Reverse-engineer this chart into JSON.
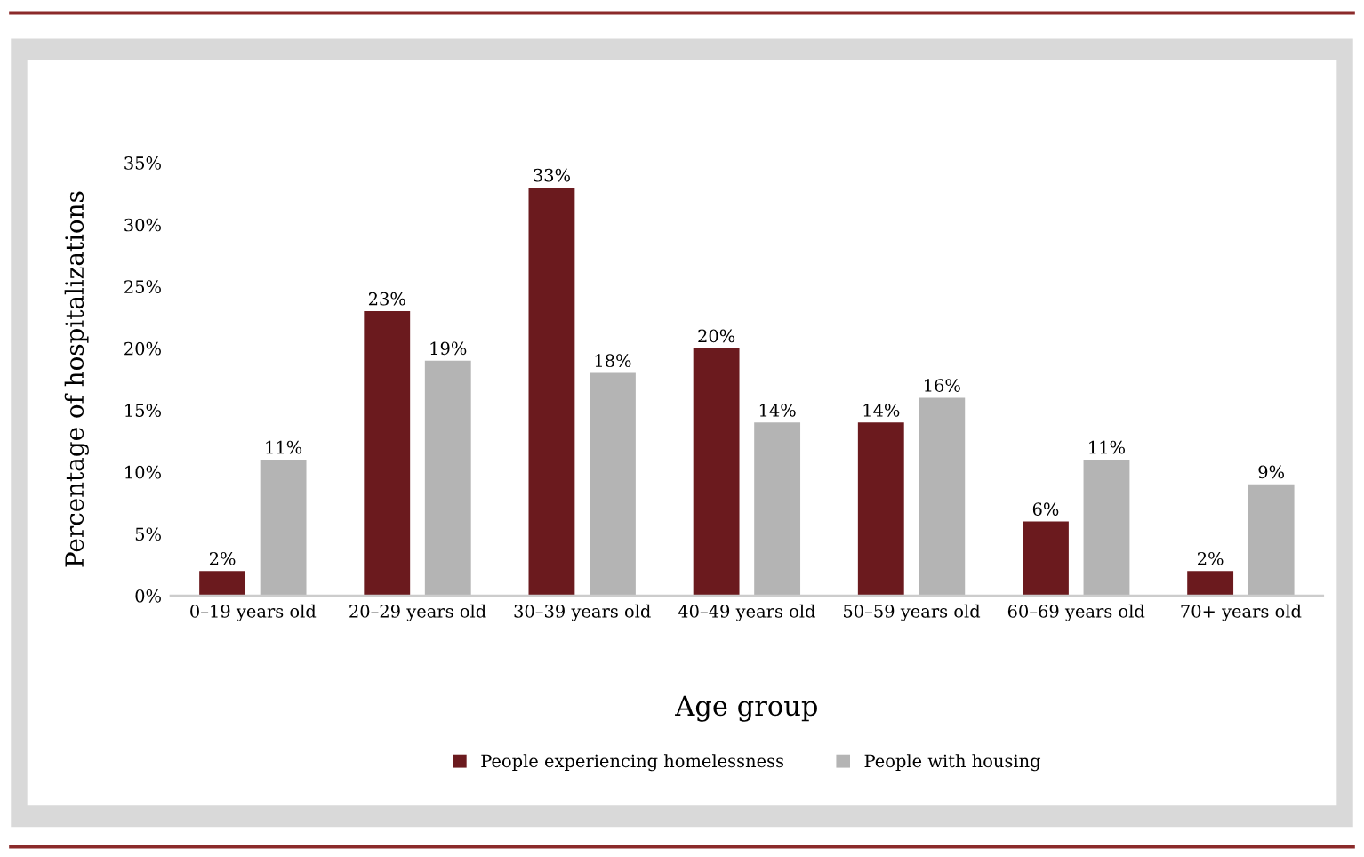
{
  "chart_data": {
    "type": "bar",
    "xlabel": "Age group",
    "ylabel": "Percentage of hospitalizations",
    "categories": [
      "0–19 years old",
      "20–29 years old",
      "30–39 years old",
      "40–49 years old",
      "50–59 years old",
      "60–69 years old",
      "70+ years old"
    ],
    "series": [
      {
        "name": "People experiencing homelessness",
        "color": "#6b1a1e",
        "values": [
          2,
          23,
          33,
          20,
          14,
          6,
          2
        ],
        "value_labels": [
          "2%",
          "23%",
          "33%",
          "20%",
          "14%",
          "6%",
          "2%"
        ]
      },
      {
        "name": "People with housing",
        "color": "#b4b4b4",
        "values": [
          11,
          19,
          18,
          14,
          16,
          11,
          9
        ],
        "value_labels": [
          "11%",
          "19%",
          "18%",
          "14%",
          "16%",
          "11%",
          "9%"
        ]
      }
    ],
    "ylim": [
      0,
      35
    ],
    "yticks": [
      {
        "value": 0,
        "label": "0%"
      },
      {
        "value": 5,
        "label": "5%"
      },
      {
        "value": 10,
        "label": "10%"
      },
      {
        "value": 15,
        "label": "15%"
      },
      {
        "value": 20,
        "label": "20%"
      },
      {
        "value": 25,
        "label": "25%"
      },
      {
        "value": 30,
        "label": "30%"
      },
      {
        "value": 35,
        "label": "35%"
      }
    ],
    "grid": false,
    "legend": "bottom"
  }
}
